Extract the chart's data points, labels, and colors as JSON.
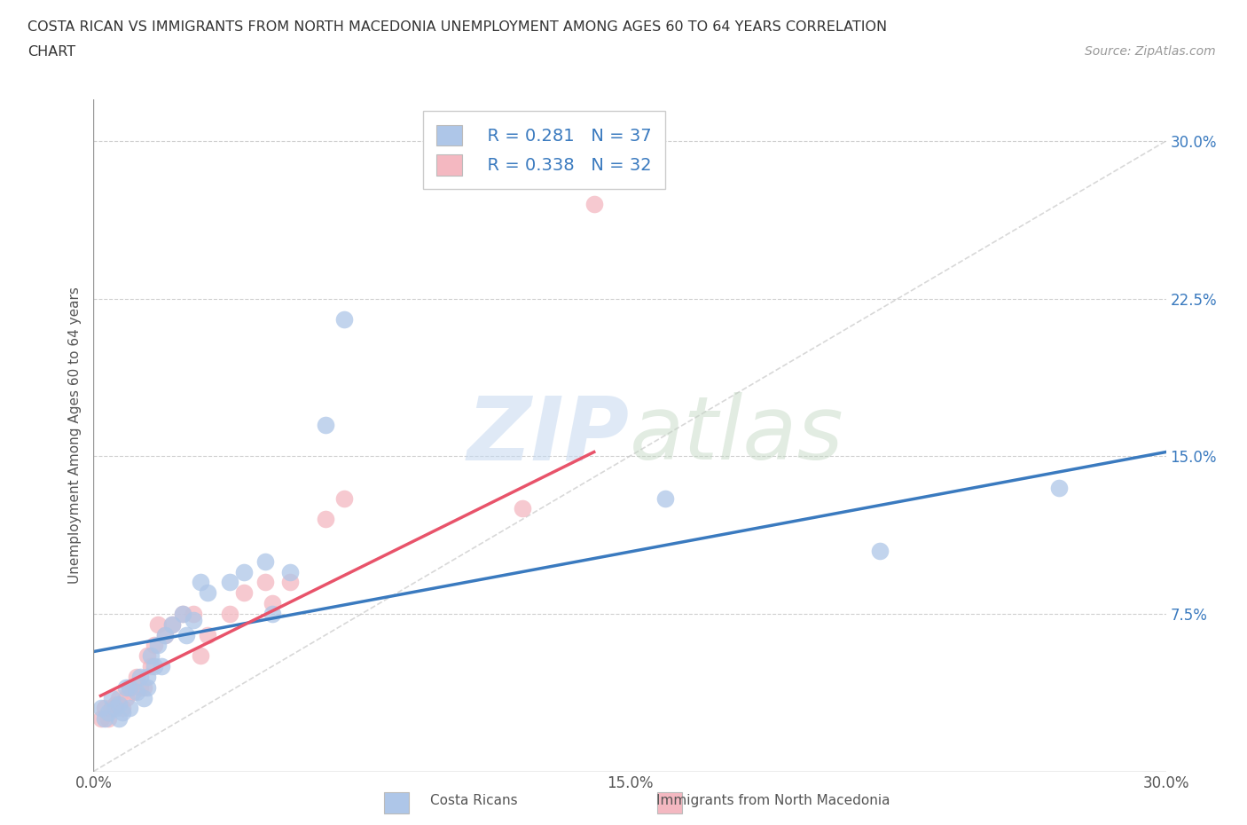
{
  "title_line1": "COSTA RICAN VS IMMIGRANTS FROM NORTH MACEDONIA UNEMPLOYMENT AMONG AGES 60 TO 64 YEARS CORRELATION",
  "title_line2": "CHART",
  "source_text": "Source: ZipAtlas.com",
  "ylabel": "Unemployment Among Ages 60 to 64 years",
  "xlim": [
    0.0,
    0.3
  ],
  "ylim": [
    0.0,
    0.32
  ],
  "xticks": [
    0.0,
    0.075,
    0.15,
    0.225,
    0.3
  ],
  "xticklabels": [
    "0.0%",
    "",
    "15.0%",
    "",
    "30.0%"
  ],
  "ytick_positions": [
    0.075,
    0.15,
    0.225,
    0.3
  ],
  "ytick_labels": [
    "7.5%",
    "15.0%",
    "22.5%",
    "30.0%"
  ],
  "legend_r1": "R = 0.281",
  "legend_n1": "N = 37",
  "legend_r2": "R = 0.338",
  "legend_n2": "N = 32",
  "color_cr": "#aec6e8",
  "color_nm": "#f4b8c1",
  "trendline_cr_color": "#3a7abf",
  "trendline_nm_color": "#e8536a",
  "diagonal_color": "#c8c8c8",
  "background_color": "#ffffff",
  "watermark_zip": "ZIP",
  "watermark_atlas": "atlas",
  "cr_scatter_x": [
    0.002,
    0.003,
    0.004,
    0.005,
    0.006,
    0.007,
    0.007,
    0.008,
    0.009,
    0.01,
    0.01,
    0.012,
    0.013,
    0.014,
    0.015,
    0.015,
    0.016,
    0.017,
    0.018,
    0.019,
    0.02,
    0.022,
    0.025,
    0.026,
    0.028,
    0.03,
    0.032,
    0.038,
    0.042,
    0.048,
    0.05,
    0.055,
    0.065,
    0.07,
    0.16,
    0.22,
    0.27
  ],
  "cr_scatter_y": [
    0.03,
    0.025,
    0.028,
    0.035,
    0.03,
    0.025,
    0.032,
    0.028,
    0.04,
    0.03,
    0.04,
    0.038,
    0.045,
    0.035,
    0.04,
    0.045,
    0.055,
    0.05,
    0.06,
    0.05,
    0.065,
    0.07,
    0.075,
    0.065,
    0.072,
    0.09,
    0.085,
    0.09,
    0.095,
    0.1,
    0.075,
    0.095,
    0.165,
    0.215,
    0.13,
    0.105,
    0.135
  ],
  "nm_scatter_x": [
    0.002,
    0.003,
    0.004,
    0.005,
    0.006,
    0.007,
    0.008,
    0.009,
    0.01,
    0.011,
    0.012,
    0.013,
    0.014,
    0.015,
    0.016,
    0.017,
    0.018,
    0.02,
    0.022,
    0.025,
    0.028,
    0.03,
    0.032,
    0.038,
    0.042,
    0.048,
    0.05,
    0.055,
    0.065,
    0.07,
    0.12,
    0.14
  ],
  "nm_scatter_y": [
    0.025,
    0.03,
    0.025,
    0.03,
    0.032,
    0.035,
    0.03,
    0.035,
    0.04,
    0.038,
    0.045,
    0.04,
    0.04,
    0.055,
    0.05,
    0.06,
    0.07,
    0.065,
    0.07,
    0.075,
    0.075,
    0.055,
    0.065,
    0.075,
    0.085,
    0.09,
    0.08,
    0.09,
    0.12,
    0.13,
    0.125,
    0.27
  ],
  "cr_trend_x": [
    0.0,
    0.3
  ],
  "cr_trend_y": [
    0.057,
    0.152
  ],
  "nm_trend_x": [
    0.002,
    0.14
  ],
  "nm_trend_y": [
    0.036,
    0.152
  ]
}
